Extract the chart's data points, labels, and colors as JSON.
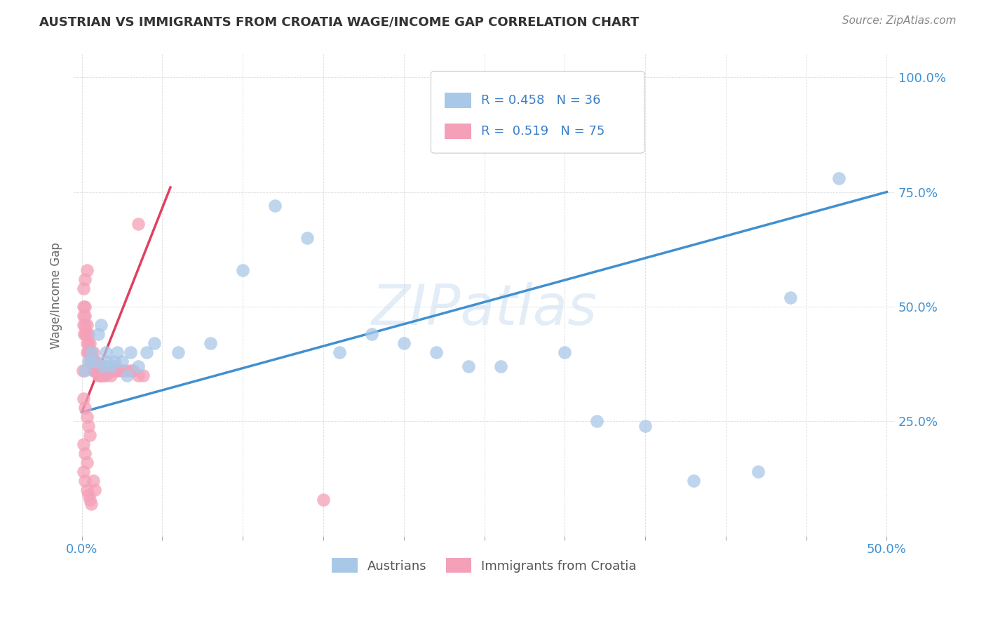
{
  "title": "AUSTRIAN VS IMMIGRANTS FROM CROATIA WAGE/INCOME GAP CORRELATION CHART",
  "source": "Source: ZipAtlas.com",
  "ylabel": "Wage/Income Gap",
  "blue_R": "0.458",
  "blue_N": "36",
  "pink_R": "0.519",
  "pink_N": "75",
  "legend1_label": "Austrians",
  "legend2_label": "Immigrants from Croatia",
  "blue_color": "#A8C8E8",
  "pink_color": "#F4A0B8",
  "blue_line_color": "#4090D0",
  "pink_line_color": "#E04060",
  "dash_color": "#E8A0B0",
  "watermark": "ZIPatlas",
  "background_color": "#FFFFFF",
  "grid_color": "#DDDDDD",
  "blue_line_x": [
    0.0,
    0.5
  ],
  "blue_line_y": [
    0.27,
    0.75
  ],
  "pink_line_x": [
    0.0,
    0.055
  ],
  "pink_line_y": [
    0.27,
    0.76
  ],
  "dash_line_x": [
    0.0,
    0.055
  ],
  "dash_line_y": [
    0.27,
    0.76
  ],
  "blue_x": [
    0.002,
    0.004,
    0.006,
    0.008,
    0.01,
    0.012,
    0.013,
    0.015,
    0.016,
    0.018,
    0.02,
    0.022,
    0.025,
    0.028,
    0.03,
    0.035,
    0.04,
    0.045,
    0.06,
    0.08,
    0.1,
    0.12,
    0.14,
    0.16,
    0.18,
    0.2,
    0.22,
    0.24,
    0.26,
    0.3,
    0.32,
    0.35,
    0.38,
    0.42,
    0.44,
    0.47
  ],
  "blue_y": [
    0.36,
    0.38,
    0.4,
    0.38,
    0.44,
    0.46,
    0.37,
    0.4,
    0.38,
    0.37,
    0.38,
    0.4,
    0.38,
    0.35,
    0.4,
    0.37,
    0.4,
    0.42,
    0.4,
    0.42,
    0.58,
    0.72,
    0.65,
    0.4,
    0.44,
    0.42,
    0.4,
    0.37,
    0.37,
    0.4,
    0.25,
    0.24,
    0.12,
    0.14,
    0.52,
    0.78
  ],
  "pink_x": [
    0.0005,
    0.001,
    0.001,
    0.001,
    0.0015,
    0.002,
    0.002,
    0.002,
    0.002,
    0.003,
    0.003,
    0.003,
    0.003,
    0.004,
    0.004,
    0.004,
    0.005,
    0.005,
    0.005,
    0.006,
    0.006,
    0.007,
    0.007,
    0.007,
    0.008,
    0.008,
    0.009,
    0.009,
    0.01,
    0.01,
    0.011,
    0.011,
    0.012,
    0.012,
    0.013,
    0.013,
    0.014,
    0.015,
    0.015,
    0.016,
    0.017,
    0.018,
    0.018,
    0.019,
    0.02,
    0.021,
    0.022,
    0.023,
    0.025,
    0.027,
    0.03,
    0.032,
    0.035,
    0.038,
    0.001,
    0.002,
    0.003,
    0.004,
    0.005,
    0.001,
    0.002,
    0.003,
    0.001,
    0.002,
    0.003,
    0.004,
    0.005,
    0.006,
    0.007,
    0.008,
    0.001,
    0.002,
    0.003,
    0.035,
    0.15
  ],
  "pink_y": [
    0.36,
    0.5,
    0.48,
    0.46,
    0.44,
    0.5,
    0.48,
    0.46,
    0.44,
    0.46,
    0.44,
    0.42,
    0.4,
    0.44,
    0.42,
    0.4,
    0.42,
    0.4,
    0.38,
    0.4,
    0.38,
    0.4,
    0.38,
    0.36,
    0.38,
    0.36,
    0.38,
    0.36,
    0.37,
    0.35,
    0.37,
    0.35,
    0.37,
    0.35,
    0.37,
    0.35,
    0.36,
    0.37,
    0.35,
    0.36,
    0.36,
    0.36,
    0.35,
    0.36,
    0.36,
    0.37,
    0.36,
    0.36,
    0.36,
    0.36,
    0.36,
    0.36,
    0.35,
    0.35,
    0.3,
    0.28,
    0.26,
    0.24,
    0.22,
    0.2,
    0.18,
    0.16,
    0.14,
    0.12,
    0.1,
    0.09,
    0.08,
    0.07,
    0.12,
    0.1,
    0.54,
    0.56,
    0.58,
    0.68,
    0.08
  ],
  "xlim": [
    -0.005,
    0.505
  ],
  "ylim": [
    0.0,
    1.05
  ],
  "xticks": [
    0.0,
    0.05,
    0.1,
    0.15,
    0.2,
    0.25,
    0.3,
    0.35,
    0.4,
    0.45,
    0.5
  ],
  "xticklabels": [
    "0.0%",
    "",
    "",
    "",
    "",
    "",
    "",
    "",
    "",
    "",
    "50.0%"
  ],
  "yticks_right": [
    0.0,
    0.25,
    0.5,
    0.75,
    1.0
  ],
  "yticklabels_right": [
    "",
    "25.0%",
    "50.0%",
    "75.0%",
    "100.0%"
  ]
}
